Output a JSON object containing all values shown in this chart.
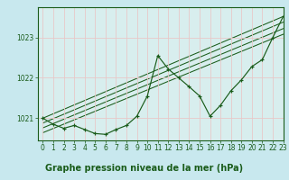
{
  "title": "Graphe pression niveau de la mer (hPa)",
  "background_color": "#c8e8ee",
  "plot_bg_color": "#d8eeee",
  "grid_color": "#e8c8c8",
  "line_color": "#1a5c1a",
  "xlim": [
    -0.5,
    23
  ],
  "ylim": [
    1020.45,
    1023.75
  ],
  "yticks": [
    1021,
    1022,
    1023
  ],
  "xticks": [
    0,
    1,
    2,
    3,
    4,
    5,
    6,
    7,
    8,
    9,
    10,
    11,
    12,
    13,
    14,
    15,
    16,
    17,
    18,
    19,
    20,
    21,
    22,
    23
  ],
  "main_data": {
    "x": [
      0,
      1,
      2,
      3,
      4,
      5,
      6,
      7,
      8,
      9,
      10,
      11,
      12,
      13,
      14,
      15,
      16,
      17,
      18,
      19,
      20,
      21,
      22,
      23
    ],
    "y": [
      1021.0,
      1020.85,
      1020.75,
      1020.82,
      1020.72,
      1020.62,
      1020.6,
      1020.72,
      1020.82,
      1021.05,
      1021.55,
      1022.55,
      1022.22,
      1022.0,
      1021.78,
      1021.55,
      1021.05,
      1021.32,
      1021.68,
      1021.95,
      1022.28,
      1022.45,
      1023.0,
      1023.52
    ]
  },
  "trend_lines": [
    {
      "x": [
        0,
        23
      ],
      "y": [
        1021.0,
        1023.52
      ]
    },
    {
      "x": [
        0,
        23
      ],
      "y": [
        1020.88,
        1023.38
      ]
    },
    {
      "x": [
        0,
        23
      ],
      "y": [
        1020.76,
        1023.22
      ]
    },
    {
      "x": [
        0,
        23
      ],
      "y": [
        1020.64,
        1023.08
      ]
    }
  ],
  "tick_fontsize": 5.5,
  "xlabel_fontsize": 7.0
}
